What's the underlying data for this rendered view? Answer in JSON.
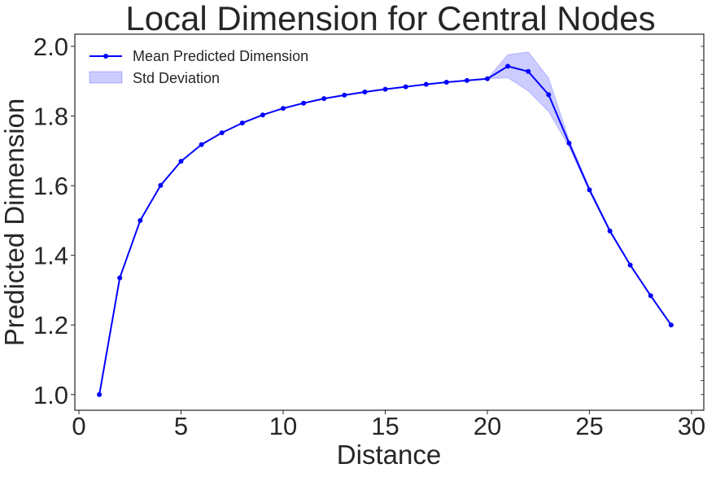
{
  "chart_data": {
    "type": "line",
    "title": "Local Dimension for Central Nodes",
    "xlabel": "Distance",
    "ylabel": "Predicted Dimension",
    "xlim": [
      -0.2,
      30.6
    ],
    "ylim": [
      0.955,
      2.035
    ],
    "xticks": [
      0,
      5,
      10,
      15,
      20,
      25,
      30
    ],
    "yticks": [
      1.0,
      1.2,
      1.4,
      1.6,
      1.8,
      2.0
    ],
    "xtick_labels": [
      "0",
      "5",
      "10",
      "15",
      "20",
      "25",
      "30"
    ],
    "ytick_labels": [
      "1.0",
      "1.2",
      "1.4",
      "1.6",
      "1.8",
      "2.0"
    ],
    "grid": false,
    "legend": {
      "position": "top-left",
      "entries": [
        "Mean Predicted Dimension",
        "Std Deviation"
      ]
    },
    "colors": {
      "line": "#0000ff",
      "band": "#0000ff",
      "axes": "#262626"
    },
    "series": [
      {
        "name": "Mean Predicted Dimension",
        "x": [
          1,
          2,
          3,
          4,
          5,
          6,
          7,
          8,
          9,
          10,
          11,
          12,
          13,
          14,
          15,
          16,
          17,
          18,
          19,
          20,
          21,
          22,
          23,
          24,
          25,
          26,
          27,
          28,
          29
        ],
        "values": [
          1.0,
          1.335,
          1.5,
          1.601,
          1.67,
          1.718,
          1.752,
          1.78,
          1.803,
          1.822,
          1.837,
          1.85,
          1.86,
          1.869,
          1.877,
          1.884,
          1.891,
          1.897,
          1.902,
          1.907,
          1.943,
          1.928,
          1.861,
          1.722,
          1.588,
          1.47,
          1.372,
          1.284,
          1.2
        ],
        "std": [
          0,
          0,
          0,
          0,
          0,
          0,
          0,
          0,
          0,
          0,
          0,
          0,
          0,
          0,
          0,
          0,
          0,
          0,
          0,
          0,
          0.033,
          0.056,
          0.048,
          0.01,
          0.006,
          0.004,
          0.002,
          0.002,
          0.001
        ]
      },
      {
        "name": "Std Deviation",
        "type": "band"
      }
    ]
  }
}
